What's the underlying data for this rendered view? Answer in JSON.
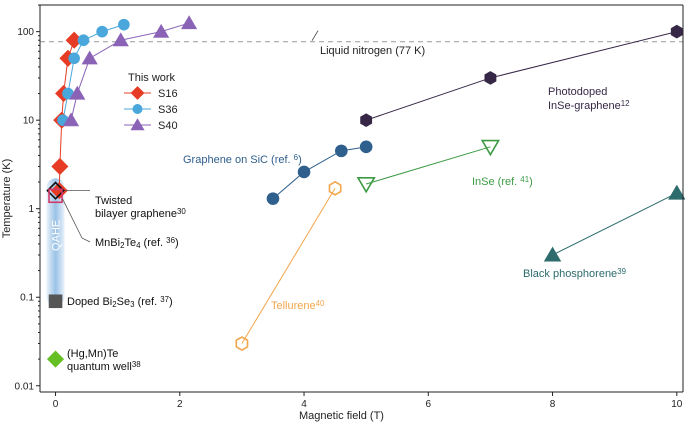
{
  "chart_data": {
    "type": "scatter",
    "xlabel": "Magnetic field (T)",
    "ylabel": "Temperature (K)",
    "xlim": [
      -0.25,
      10.1
    ],
    "ylim": [
      0.0085,
      200
    ],
    "yscale": "log",
    "xticks": [
      "0",
      "2",
      "4",
      "6",
      "8",
      "10"
    ],
    "yticks": [
      "0.01",
      "0.1",
      "1",
      "10",
      "100"
    ],
    "grid": false,
    "reference_line": {
      "y": 77,
      "label": "Liquid nitrogen (77 K)",
      "style": "dashed"
    },
    "legend": {
      "title": "This work",
      "position": "upper-left",
      "entries": [
        "S16",
        "S36",
        "S40"
      ]
    },
    "series": [
      {
        "name": "S16",
        "marker": "diamond",
        "color": "#e63c26",
        "line": true,
        "points": [
          [
            0.06,
            1.6
          ],
          [
            0.07,
            3.0
          ],
          [
            0.1,
            10
          ],
          [
            0.13,
            20
          ],
          [
            0.2,
            50
          ],
          [
            0.3,
            80
          ]
        ]
      },
      {
        "name": "S36",
        "marker": "circle",
        "color": "#4aa7dc",
        "line": true,
        "points": [
          [
            0.12,
            10
          ],
          [
            0.2,
            20
          ],
          [
            0.3,
            50
          ],
          [
            0.45,
            80
          ],
          [
            0.75,
            100
          ],
          [
            1.1,
            120
          ]
        ]
      },
      {
        "name": "S40",
        "marker": "triangle-up",
        "color": "#8a63b7",
        "line": true,
        "points": [
          [
            0.25,
            10
          ],
          [
            0.35,
            20
          ],
          [
            0.55,
            50
          ],
          [
            1.05,
            80
          ],
          [
            1.7,
            100
          ],
          [
            2.15,
            125
          ]
        ]
      },
      {
        "name": "Photodoped InSe-graphene12",
        "marker": "hexagon",
        "color": "#362746",
        "line": true,
        "points": [
          [
            5,
            10
          ],
          [
            7,
            30
          ],
          [
            10,
            100
          ]
        ]
      },
      {
        "name": "Graphene on SiC (ref. 6)",
        "marker": "circle",
        "color": "#2f5f8c",
        "line": true,
        "points": [
          [
            3.5,
            1.3
          ],
          [
            4.0,
            2.6
          ],
          [
            4.6,
            4.5
          ],
          [
            5.0,
            5.0
          ]
        ]
      },
      {
        "name": "InSe (ref. 41)",
        "marker": "triangle-down-open",
        "color": "#3c9a43",
        "line": true,
        "points": [
          [
            5,
            1.9
          ],
          [
            7,
            5
          ]
        ]
      },
      {
        "name": "Black phosphorene39",
        "marker": "triangle-up",
        "color": "#2d6b6d",
        "line": true,
        "points": [
          [
            8,
            0.3
          ],
          [
            10,
            1.5
          ]
        ]
      },
      {
        "name": "Tellurene40",
        "marker": "hexagon-open",
        "color": "#f1a64c",
        "line": true,
        "points": [
          [
            3,
            0.03
          ],
          [
            4.5,
            1.7
          ]
        ]
      },
      {
        "name": "Twisted bilayer graphene30",
        "marker": "diamond-open",
        "color": "#111111",
        "line": false,
        "points": [
          [
            0,
            1.6
          ]
        ]
      },
      {
        "name": "MnBi2Te4 (ref. 36)",
        "marker": "square-open",
        "color": "#d13a6b",
        "line": false,
        "points": [
          [
            0,
            1.4
          ]
        ]
      },
      {
        "name": "Doped Bi2Se3 (ref. 37)",
        "marker": "square",
        "color": "#555555",
        "line": false,
        "points": [
          [
            0,
            0.09
          ]
        ]
      },
      {
        "name": "(Hg,Mn)Te quantum well38",
        "marker": "diamond",
        "color": "#67c023",
        "line": false,
        "points": [
          [
            0,
            0.02
          ]
        ]
      }
    ],
    "band": {
      "label": "QAHE",
      "x": 0,
      "from": 0.08,
      "to": 2.2,
      "color": "#6fa8dc"
    },
    "annotations": [
      {
        "text": "Photodoped",
        "color": "#362746"
      },
      {
        "text": "InSe-graphene",
        "sup": "12",
        "color": "#362746"
      },
      {
        "text": "Graphene on SiC (ref. ",
        "sup": "6",
        "tail": ")",
        "color": "#2f5f8c"
      },
      {
        "text": "InSe (ref. ",
        "sup": "41",
        "tail": ")",
        "color": "#3c9a43"
      },
      {
        "text": "Black phosphorene",
        "sup": "39",
        "color": "#2d6b6d"
      },
      {
        "text": "Tellurene",
        "sup": "40",
        "color": "#f1a64c"
      },
      {
        "text": "Twisted",
        "color": "#111111"
      },
      {
        "text": "bilayer graphene",
        "sup": "30",
        "color": "#111111"
      },
      {
        "text": "MnBi",
        "sub": "2",
        "mid": "Te",
        "sub2": "4",
        "tail": " (ref. ",
        "sup": "36",
        "tail2": ")",
        "color": "#111111"
      },
      {
        "text": "Doped Bi",
        "sub": "2",
        "mid": "Se",
        "sub2": "3",
        "tail": " (ref. ",
        "sup": "37",
        "tail2": ")",
        "color": "#111111"
      },
      {
        "text": "(Hg,Mn)Te",
        "color": "#111111"
      },
      {
        "text": "quantum well",
        "sup": "38",
        "color": "#111111"
      }
    ]
  }
}
